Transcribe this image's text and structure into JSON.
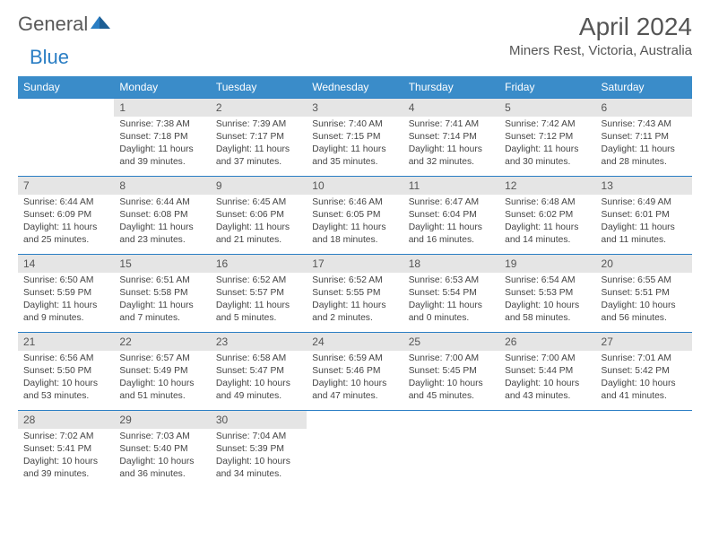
{
  "logo": {
    "text1": "General",
    "text2": "Blue"
  },
  "title": "April 2024",
  "location": "Miners Rest, Victoria, Australia",
  "dow": [
    "Sunday",
    "Monday",
    "Tuesday",
    "Wednesday",
    "Thursday",
    "Friday",
    "Saturday"
  ],
  "colors": {
    "header_bg": "#3a8cc9",
    "header_text": "#ffffff",
    "daynum_bg": "#e5e5e5",
    "border_top": "#2a7ec4",
    "body_text": "#444444",
    "title_text": "#555555",
    "logo_gray": "#5a5a5a",
    "logo_blue": "#2a7ec4",
    "page_bg": "#ffffff"
  },
  "typography": {
    "title_fontsize": 28,
    "location_fontsize": 15,
    "logo_fontsize": 22,
    "dow_fontsize": 12,
    "daynum_fontsize": 12,
    "cell_fontsize": 10.3
  },
  "weeks": [
    [
      null,
      {
        "n": "1",
        "sr": "Sunrise: 7:38 AM",
        "ss": "Sunset: 7:18 PM",
        "d1": "Daylight: 11 hours",
        "d2": "and 39 minutes."
      },
      {
        "n": "2",
        "sr": "Sunrise: 7:39 AM",
        "ss": "Sunset: 7:17 PM",
        "d1": "Daylight: 11 hours",
        "d2": "and 37 minutes."
      },
      {
        "n": "3",
        "sr": "Sunrise: 7:40 AM",
        "ss": "Sunset: 7:15 PM",
        "d1": "Daylight: 11 hours",
        "d2": "and 35 minutes."
      },
      {
        "n": "4",
        "sr": "Sunrise: 7:41 AM",
        "ss": "Sunset: 7:14 PM",
        "d1": "Daylight: 11 hours",
        "d2": "and 32 minutes."
      },
      {
        "n": "5",
        "sr": "Sunrise: 7:42 AM",
        "ss": "Sunset: 7:12 PM",
        "d1": "Daylight: 11 hours",
        "d2": "and 30 minutes."
      },
      {
        "n": "6",
        "sr": "Sunrise: 7:43 AM",
        "ss": "Sunset: 7:11 PM",
        "d1": "Daylight: 11 hours",
        "d2": "and 28 minutes."
      }
    ],
    [
      {
        "n": "7",
        "sr": "Sunrise: 6:44 AM",
        "ss": "Sunset: 6:09 PM",
        "d1": "Daylight: 11 hours",
        "d2": "and 25 minutes."
      },
      {
        "n": "8",
        "sr": "Sunrise: 6:44 AM",
        "ss": "Sunset: 6:08 PM",
        "d1": "Daylight: 11 hours",
        "d2": "and 23 minutes."
      },
      {
        "n": "9",
        "sr": "Sunrise: 6:45 AM",
        "ss": "Sunset: 6:06 PM",
        "d1": "Daylight: 11 hours",
        "d2": "and 21 minutes."
      },
      {
        "n": "10",
        "sr": "Sunrise: 6:46 AM",
        "ss": "Sunset: 6:05 PM",
        "d1": "Daylight: 11 hours",
        "d2": "and 18 minutes."
      },
      {
        "n": "11",
        "sr": "Sunrise: 6:47 AM",
        "ss": "Sunset: 6:04 PM",
        "d1": "Daylight: 11 hours",
        "d2": "and 16 minutes."
      },
      {
        "n": "12",
        "sr": "Sunrise: 6:48 AM",
        "ss": "Sunset: 6:02 PM",
        "d1": "Daylight: 11 hours",
        "d2": "and 14 minutes."
      },
      {
        "n": "13",
        "sr": "Sunrise: 6:49 AM",
        "ss": "Sunset: 6:01 PM",
        "d1": "Daylight: 11 hours",
        "d2": "and 11 minutes."
      }
    ],
    [
      {
        "n": "14",
        "sr": "Sunrise: 6:50 AM",
        "ss": "Sunset: 5:59 PM",
        "d1": "Daylight: 11 hours",
        "d2": "and 9 minutes."
      },
      {
        "n": "15",
        "sr": "Sunrise: 6:51 AM",
        "ss": "Sunset: 5:58 PM",
        "d1": "Daylight: 11 hours",
        "d2": "and 7 minutes."
      },
      {
        "n": "16",
        "sr": "Sunrise: 6:52 AM",
        "ss": "Sunset: 5:57 PM",
        "d1": "Daylight: 11 hours",
        "d2": "and 5 minutes."
      },
      {
        "n": "17",
        "sr": "Sunrise: 6:52 AM",
        "ss": "Sunset: 5:55 PM",
        "d1": "Daylight: 11 hours",
        "d2": "and 2 minutes."
      },
      {
        "n": "18",
        "sr": "Sunrise: 6:53 AM",
        "ss": "Sunset: 5:54 PM",
        "d1": "Daylight: 11 hours",
        "d2": "and 0 minutes."
      },
      {
        "n": "19",
        "sr": "Sunrise: 6:54 AM",
        "ss": "Sunset: 5:53 PM",
        "d1": "Daylight: 10 hours",
        "d2": "and 58 minutes."
      },
      {
        "n": "20",
        "sr": "Sunrise: 6:55 AM",
        "ss": "Sunset: 5:51 PM",
        "d1": "Daylight: 10 hours",
        "d2": "and 56 minutes."
      }
    ],
    [
      {
        "n": "21",
        "sr": "Sunrise: 6:56 AM",
        "ss": "Sunset: 5:50 PM",
        "d1": "Daylight: 10 hours",
        "d2": "and 53 minutes."
      },
      {
        "n": "22",
        "sr": "Sunrise: 6:57 AM",
        "ss": "Sunset: 5:49 PM",
        "d1": "Daylight: 10 hours",
        "d2": "and 51 minutes."
      },
      {
        "n": "23",
        "sr": "Sunrise: 6:58 AM",
        "ss": "Sunset: 5:47 PM",
        "d1": "Daylight: 10 hours",
        "d2": "and 49 minutes."
      },
      {
        "n": "24",
        "sr": "Sunrise: 6:59 AM",
        "ss": "Sunset: 5:46 PM",
        "d1": "Daylight: 10 hours",
        "d2": "and 47 minutes."
      },
      {
        "n": "25",
        "sr": "Sunrise: 7:00 AM",
        "ss": "Sunset: 5:45 PM",
        "d1": "Daylight: 10 hours",
        "d2": "and 45 minutes."
      },
      {
        "n": "26",
        "sr": "Sunrise: 7:00 AM",
        "ss": "Sunset: 5:44 PM",
        "d1": "Daylight: 10 hours",
        "d2": "and 43 minutes."
      },
      {
        "n": "27",
        "sr": "Sunrise: 7:01 AM",
        "ss": "Sunset: 5:42 PM",
        "d1": "Daylight: 10 hours",
        "d2": "and 41 minutes."
      }
    ],
    [
      {
        "n": "28",
        "sr": "Sunrise: 7:02 AM",
        "ss": "Sunset: 5:41 PM",
        "d1": "Daylight: 10 hours",
        "d2": "and 39 minutes."
      },
      {
        "n": "29",
        "sr": "Sunrise: 7:03 AM",
        "ss": "Sunset: 5:40 PM",
        "d1": "Daylight: 10 hours",
        "d2": "and 36 minutes."
      },
      {
        "n": "30",
        "sr": "Sunrise: 7:04 AM",
        "ss": "Sunset: 5:39 PM",
        "d1": "Daylight: 10 hours",
        "d2": "and 34 minutes."
      },
      null,
      null,
      null,
      null
    ]
  ]
}
